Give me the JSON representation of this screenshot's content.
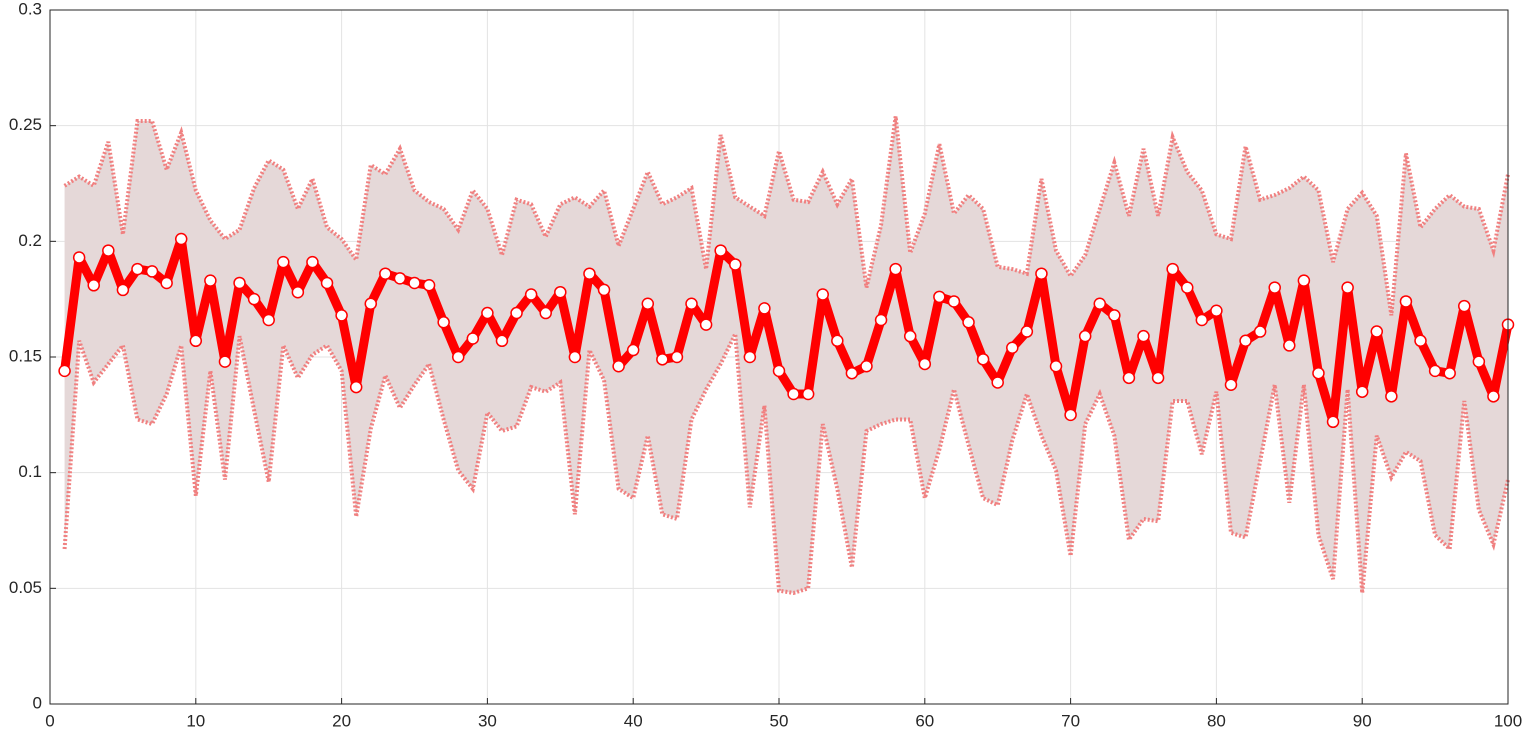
{
  "chart_data": {
    "type": "line",
    "x": [
      1,
      2,
      3,
      4,
      5,
      6,
      7,
      8,
      9,
      10,
      11,
      12,
      13,
      14,
      15,
      16,
      17,
      18,
      19,
      20,
      21,
      22,
      23,
      24,
      25,
      26,
      27,
      28,
      29,
      30,
      31,
      32,
      33,
      34,
      35,
      36,
      37,
      38,
      39,
      40,
      41,
      42,
      43,
      44,
      45,
      46,
      47,
      48,
      49,
      50,
      51,
      52,
      53,
      54,
      55,
      56,
      57,
      58,
      59,
      60,
      61,
      62,
      63,
      64,
      65,
      66,
      67,
      68,
      69,
      70,
      71,
      72,
      73,
      74,
      75,
      76,
      77,
      78,
      79,
      80,
      81,
      82,
      83,
      84,
      85,
      86,
      87,
      88,
      89,
      90,
      91,
      92,
      93,
      94,
      95,
      96,
      97,
      98,
      99,
      100
    ],
    "series": [
      {
        "color": "#ff0000",
        "marker_fill": "#ffffff",
        "values": [
          0.144,
          0.193,
          0.181,
          0.196,
          0.179,
          0.188,
          0.187,
          0.182,
          0.201,
          0.157,
          0.183,
          0.148,
          0.182,
          0.175,
          0.166,
          0.191,
          0.178,
          0.191,
          0.182,
          0.168,
          0.137,
          0.173,
          0.186,
          0.184,
          0.182,
          0.181,
          0.165,
          0.15,
          0.158,
          0.169,
          0.157,
          0.169,
          0.177,
          0.169,
          0.178,
          0.15,
          0.186,
          0.179,
          0.146,
          0.153,
          0.173,
          0.149,
          0.15,
          0.173,
          0.164,
          0.196,
          0.19,
          0.15,
          0.171,
          0.144,
          0.134,
          0.134,
          0.177,
          0.157,
          0.143,
          0.146,
          0.166,
          0.188,
          0.159,
          0.147,
          0.176,
          0.174,
          0.165,
          0.149,
          0.139,
          0.154,
          0.161,
          0.186,
          0.146,
          0.125,
          0.159,
          0.173,
          0.168,
          0.141,
          0.159,
          0.141,
          0.188,
          0.18,
          0.166,
          0.17,
          0.138,
          0.157,
          0.161,
          0.18,
          0.155,
          0.183,
          0.143,
          0.122,
          0.18,
          0.135,
          0.161,
          0.133,
          0.174,
          0.157,
          0.144,
          0.143,
          0.172,
          0.148,
          0.133,
          0.164
        ]
      }
    ],
    "band": {
      "fill": "#e5d8d8",
      "line_color": "#f08080",
      "upper": [
        0.224,
        0.228,
        0.224,
        0.243,
        0.203,
        0.252,
        0.252,
        0.231,
        0.247,
        0.222,
        0.209,
        0.201,
        0.205,
        0.223,
        0.235,
        0.231,
        0.214,
        0.227,
        0.206,
        0.201,
        0.192,
        0.233,
        0.229,
        0.24,
        0.222,
        0.217,
        0.214,
        0.205,
        0.222,
        0.214,
        0.194,
        0.218,
        0.216,
        0.202,
        0.216,
        0.219,
        0.215,
        0.222,
        0.198,
        0.214,
        0.23,
        0.216,
        0.219,
        0.223,
        0.188,
        0.246,
        0.219,
        0.215,
        0.211,
        0.239,
        0.218,
        0.217,
        0.23,
        0.216,
        0.227,
        0.18,
        0.207,
        0.254,
        0.195,
        0.212,
        0.242,
        0.212,
        0.22,
        0.214,
        0.189,
        0.188,
        0.186,
        0.227,
        0.196,
        0.185,
        0.194,
        0.214,
        0.234,
        0.211,
        0.24,
        0.211,
        0.245,
        0.23,
        0.222,
        0.203,
        0.201,
        0.241,
        0.218,
        0.22,
        0.223,
        0.228,
        0.222,
        0.191,
        0.214,
        0.221,
        0.211,
        0.168,
        0.238,
        0.206,
        0.214,
        0.22,
        0.215,
        0.214,
        0.196,
        0.229
      ],
      "lower": [
        0.067,
        0.157,
        0.139,
        0.147,
        0.155,
        0.123,
        0.121,
        0.134,
        0.155,
        0.09,
        0.144,
        0.097,
        0.159,
        0.127,
        0.096,
        0.155,
        0.141,
        0.151,
        0.155,
        0.144,
        0.081,
        0.119,
        0.142,
        0.128,
        0.138,
        0.147,
        0.123,
        0.101,
        0.093,
        0.126,
        0.118,
        0.12,
        0.137,
        0.135,
        0.139,
        0.082,
        0.153,
        0.14,
        0.093,
        0.089,
        0.116,
        0.082,
        0.08,
        0.123,
        0.136,
        0.147,
        0.16,
        0.085,
        0.129,
        0.049,
        0.048,
        0.05,
        0.121,
        0.093,
        0.059,
        0.118,
        0.121,
        0.123,
        0.123,
        0.089,
        0.11,
        0.136,
        0.112,
        0.089,
        0.086,
        0.114,
        0.134,
        0.116,
        0.101,
        0.064,
        0.121,
        0.134,
        0.116,
        0.071,
        0.08,
        0.079,
        0.131,
        0.131,
        0.108,
        0.135,
        0.074,
        0.072,
        0.105,
        0.138,
        0.087,
        0.138,
        0.073,
        0.054,
        0.136,
        0.048,
        0.116,
        0.098,
        0.109,
        0.105,
        0.073,
        0.067,
        0.131,
        0.084,
        0.069,
        0.097
      ]
    },
    "xlim": [
      0,
      100
    ],
    "xticks": [
      0,
      10,
      20,
      30,
      40,
      50,
      60,
      70,
      80,
      90,
      100
    ],
    "ylim": [
      0,
      0.3
    ],
    "yticks": [
      0,
      0.05,
      0.1,
      0.15,
      0.2,
      0.25,
      0.3
    ],
    "grid": true
  }
}
